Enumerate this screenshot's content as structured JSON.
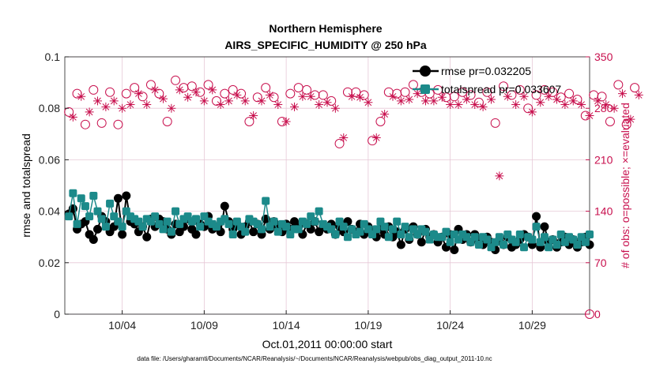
{
  "chart_data": {
    "type": "line",
    "title": "Northern Hemisphere",
    "subtitle": "AIRS_SPECIFIC_HUMIDITY @ 250 hPa",
    "xlabel": "Oct.01,2011 00:00:00 start",
    "ylabel": "rmse and totalspread",
    "y2label": "# of obs: o=possible; ×=evaluated",
    "footer": "data file: /Users/gharamti/Documents/NCAR/Reanalysis/~/Documents/NCAR/Reanalysis/webpub/obs_diag_output_2011-10.nc",
    "xlim": [
      0,
      32
    ],
    "x_ticks": [
      {
        "x": 3.5,
        "label": "10/04"
      },
      {
        "x": 8.5,
        "label": "10/09"
      },
      {
        "x": 13.5,
        "label": "10/14"
      },
      {
        "x": 18.5,
        "label": "10/19"
      },
      {
        "x": 23.5,
        "label": "10/24"
      },
      {
        "x": 28.5,
        "label": "10/29"
      }
    ],
    "ylim": [
      0,
      0.1
    ],
    "y_ticks": [
      "0",
      "0.02",
      "0.04",
      "0.06",
      "0.08",
      "0.1"
    ],
    "y_tick_values": [
      0,
      0.02,
      0.04,
      0.06,
      0.08,
      0.1
    ],
    "y2lim": [
      0,
      350
    ],
    "y2_ticks": [
      "0",
      "70",
      "140",
      "210",
      "280",
      "350"
    ],
    "y2_tick_values": [
      0,
      70,
      140,
      210,
      280,
      350
    ],
    "legend": [
      "rmse pr=0.032205",
      "totalspread pr=0.033607"
    ],
    "legend_position": "top-right",
    "colors": {
      "rmse": "#000000",
      "spread": "#1c8a8a",
      "obs": "#c8104e",
      "grid": "#e6c8d6"
    },
    "series": [
      {
        "name": "rmse",
        "key": "rmse",
        "start": 0.25,
        "step": 0.25,
        "values": [
          0.039,
          0.041,
          0.033,
          0.035,
          0.036,
          0.031,
          0.029,
          0.033,
          0.038,
          0.036,
          0.032,
          0.034,
          0.045,
          0.031,
          0.046,
          0.036,
          0.035,
          0.032,
          0.034,
          0.03,
          0.037,
          0.034,
          0.037,
          0.036,
          0.033,
          0.031,
          0.035,
          0.032,
          0.034,
          0.037,
          0.033,
          0.031,
          0.035,
          0.034,
          0.038,
          0.033,
          0.034,
          0.032,
          0.042,
          0.036,
          0.033,
          0.035,
          0.031,
          0.034,
          0.036,
          0.032,
          0.035,
          0.031,
          0.037,
          0.033,
          0.036,
          0.034,
          0.032,
          0.035,
          0.033,
          0.036,
          0.034,
          0.031,
          0.035,
          0.033,
          0.036,
          0.032,
          0.034,
          0.033,
          0.035,
          0.031,
          0.034,
          0.032,
          0.036,
          0.033,
          0.032,
          0.035,
          0.031,
          0.034,
          0.032,
          0.03,
          0.033,
          0.031,
          0.034,
          0.03,
          0.032,
          0.027,
          0.033,
          0.029,
          0.034,
          0.031,
          0.028,
          0.033,
          0.03,
          0.031,
          0.028,
          0.03,
          0.026,
          0.031,
          0.025,
          0.033,
          0.029,
          0.031,
          0.028,
          0.031,
          0.029,
          0.027,
          0.03,
          0.028,
          0.025,
          0.029,
          0.027,
          0.03,
          0.026,
          0.027,
          0.029,
          0.031,
          0.03,
          0.027,
          0.038,
          0.026,
          0.034,
          0.028,
          0.029,
          0.026,
          0.028,
          0.03,
          0.027,
          0.029,
          0.026,
          0.028,
          0.03,
          0.027
        ]
      },
      {
        "name": "totalspread",
        "key": "spread",
        "start": 0.25,
        "step": 0.25,
        "values": [
          0.038,
          0.047,
          0.035,
          0.045,
          0.042,
          0.038,
          0.046,
          0.04,
          0.037,
          0.034,
          0.043,
          0.038,
          0.036,
          0.034,
          0.04,
          0.038,
          0.037,
          0.036,
          0.034,
          0.037,
          0.036,
          0.038,
          0.035,
          0.033,
          0.036,
          0.032,
          0.04,
          0.035,
          0.037,
          0.038,
          0.036,
          0.037,
          0.034,
          0.038,
          0.036,
          0.035,
          0.034,
          0.036,
          0.037,
          0.035,
          0.031,
          0.036,
          0.034,
          0.032,
          0.037,
          0.036,
          0.035,
          0.033,
          0.044,
          0.034,
          0.036,
          0.032,
          0.035,
          0.034,
          0.031,
          0.033,
          0.033,
          0.036,
          0.035,
          0.038,
          0.036,
          0.04,
          0.035,
          0.034,
          0.033,
          0.031,
          0.036,
          0.034,
          0.03,
          0.033,
          0.031,
          0.032,
          0.035,
          0.033,
          0.031,
          0.033,
          0.036,
          0.034,
          0.03,
          0.033,
          0.036,
          0.031,
          0.034,
          0.03,
          0.033,
          0.031,
          0.033,
          0.032,
          0.029,
          0.031,
          0.03,
          0.03,
          0.032,
          0.028,
          0.031,
          0.029,
          0.031,
          0.03,
          0.028,
          0.03,
          0.027,
          0.03,
          0.029,
          0.026,
          0.028,
          0.03,
          0.027,
          0.031,
          0.029,
          0.028,
          0.031,
          0.026,
          0.03,
          0.029,
          0.034,
          0.028,
          0.03,
          0.026,
          0.029,
          0.027,
          0.031,
          0.028,
          0.03,
          0.029,
          0.027,
          0.03,
          0.028,
          0.031
        ]
      },
      {
        "name": "obs possible",
        "key": "obs_possible",
        "start": 0.25,
        "step": 0.5,
        "axis": "right",
        "marker": "circle",
        "values": [
          275,
          300,
          258,
          305,
          260,
          302,
          258,
          300,
          308,
          296,
          312,
          300,
          262,
          318,
          308,
          310,
          302,
          312,
          290,
          300,
          305,
          300,
          262,
          295,
          308,
          295,
          262,
          300,
          308,
          305,
          298,
          298,
          290,
          232,
          302,
          302,
          298,
          236,
          262,
          302,
          300,
          302,
          312,
          302,
          300,
          305,
          295,
          296,
          302,
          298,
          288,
          302,
          260,
          310,
          298,
          305,
          280,
          298,
          305,
          302,
          295,
          300,
          292,
          270,
          298,
          296,
          262,
          312,
          258,
          308
        ]
      },
      {
        "name": "obs evaluated",
        "key": "obs_evaluated",
        "start": 0.5,
        "step": 0.5,
        "axis": "right",
        "marker": "asterisk",
        "values": [
          268,
          296,
          275,
          290,
          282,
          290,
          280,
          285,
          300,
          285,
          305,
          293,
          280,
          305,
          295,
          302,
          290,
          305,
          285,
          290,
          298,
          290,
          270,
          290,
          298,
          285,
          262,
          282,
          296,
          296,
          285,
          288,
          280,
          240,
          296,
          295,
          288,
          240,
          272,
          296,
          290,
          292,
          300,
          290,
          290,
          295,
          285,
          285,
          292,
          285,
          282,
          292,
          188,
          296,
          285,
          296,
          275,
          288,
          296,
          292,
          285,
          290,
          285,
          270,
          290,
          285,
          280,
          300,
          265,
          298
        ]
      }
    ]
  }
}
